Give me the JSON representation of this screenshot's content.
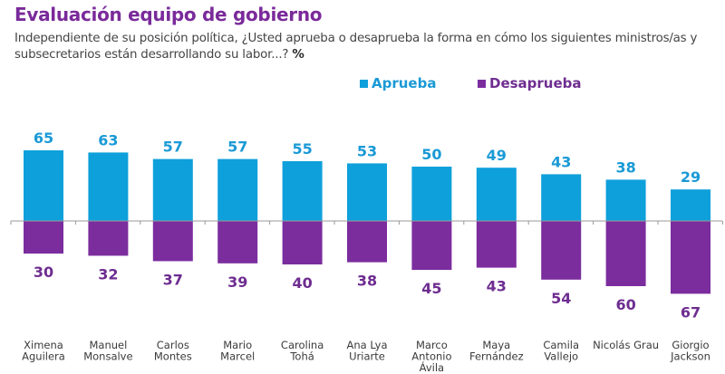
{
  "header": {
    "title": "Evaluación equipo de gobierno",
    "subtitle": "Independiente de su posición política, ¿Usted aprueba o desaprueba la forma en cómo los siguientes ministros/as y subsecretarios están desarrollando su labor...?",
    "unit": "%"
  },
  "colors": {
    "aprueba": "#0ea0db",
    "desaprueba": "#7b2d9e",
    "aprueba_label": "#1a9ad6",
    "desaprueba_label": "#6e2d90",
    "axis": "#9a9a9a"
  },
  "chart_data": {
    "type": "bar",
    "subtype": "diverging",
    "title": "Evaluación equipo de gobierno",
    "unit": "%",
    "legend_position": "top-center",
    "categories": [
      [
        "Ximena",
        "Aguilera"
      ],
      [
        "Manuel",
        "Monsalve"
      ],
      [
        "Carlos",
        "Montes"
      ],
      [
        "Mario",
        "Marcel"
      ],
      [
        "Carolina",
        "Tohá"
      ],
      [
        "Ana Lya",
        "Uriarte"
      ],
      [
        "Marco",
        "Antonio",
        "Ávila"
      ],
      [
        "Maya",
        "Fernández"
      ],
      [
        "Camila",
        "Vallejo"
      ],
      [
        "Nicolás Grau"
      ],
      [
        "Giorgio",
        "Jackson"
      ]
    ],
    "series": [
      {
        "name": "Aprueba",
        "direction": "up",
        "values": [
          65,
          63,
          57,
          57,
          55,
          53,
          50,
          49,
          43,
          38,
          29
        ]
      },
      {
        "name": "Desaprueba",
        "direction": "down",
        "values": [
          30,
          32,
          37,
          39,
          40,
          38,
          45,
          43,
          54,
          60,
          67
        ]
      }
    ],
    "grid": false
  }
}
